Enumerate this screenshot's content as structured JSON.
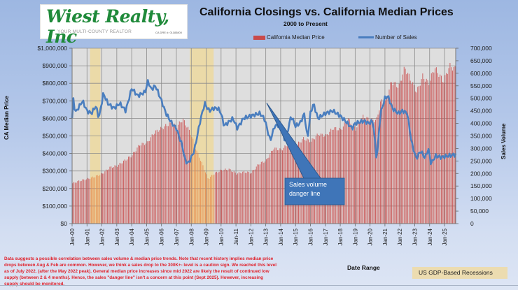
{
  "logo": {
    "name": "Wiest Realty, Inc",
    "tagline": "YOUR MULTI-COUNTY REALTOR",
    "license": "CA DRE #: 01183800"
  },
  "chart_data": {
    "type": "bar+line",
    "title": "California Closings vs. California Median Prices",
    "subtitle": "2000 to Present",
    "xlabel": "Date Range",
    "ylabel_left": "CA Median Price",
    "ylabel_right": "Sales Volume",
    "ylim_left": [
      0,
      1000000
    ],
    "ylim_right": [
      0,
      700000
    ],
    "yticks_left": [
      "$0",
      "$100,000",
      "$200,000",
      "$300,000",
      "$400,000",
      "$500,000",
      "$600,000",
      "$700,000",
      "$800,000",
      "$900,000",
      "$1,000,000"
    ],
    "yticks_right": [
      "0",
      "50,000",
      "100,000",
      "150,000",
      "200,000",
      "250,000",
      "300,000",
      "350,000",
      "400,000",
      "450,000",
      "500,000",
      "550,000",
      "600,000",
      "650,000",
      "700,000"
    ],
    "x_ticks": [
      "Jan-00",
      "Jan-01",
      "Jan-02",
      "Jan-03",
      "Jan-04",
      "Jan-05",
      "Jan-06",
      "Jan-07",
      "Jan-08",
      "Jan-09",
      "Jan-10",
      "Jan-11",
      "Jan-12",
      "Jan-13",
      "Jan-14",
      "Jan-15",
      "Jan-16",
      "Jan-17",
      "Jan-18",
      "Jan-19",
      "Jan-20",
      "Jan-21",
      "Jan-22",
      "Jan-23",
      "Jan-24",
      "Jan-25"
    ],
    "x_range_years": [
      2000,
      2025.75
    ],
    "grid": true,
    "legend_position": "top",
    "series": [
      {
        "name": "California Median Price",
        "kind": "bar",
        "color": "#c94a4a",
        "sampling": "quarterly keypoints (year, value) interpolated monthly",
        "points": [
          [
            2000.0,
            230000
          ],
          [
            2000.5,
            245000
          ],
          [
            2001.0,
            255000
          ],
          [
            2001.5,
            268000
          ],
          [
            2002.0,
            285000
          ],
          [
            2002.5,
            320000
          ],
          [
            2003.0,
            330000
          ],
          [
            2003.5,
            360000
          ],
          [
            2004.0,
            390000
          ],
          [
            2004.5,
            450000
          ],
          [
            2005.0,
            460000
          ],
          [
            2005.5,
            520000
          ],
          [
            2006.0,
            545000
          ],
          [
            2006.5,
            570000
          ],
          [
            2007.0,
            555000
          ],
          [
            2007.4,
            595000
          ],
          [
            2007.9,
            520000
          ],
          [
            2008.3,
            420000
          ],
          [
            2008.7,
            340000
          ],
          [
            2009.1,
            255000
          ],
          [
            2009.5,
            285000
          ],
          [
            2010.0,
            305000
          ],
          [
            2010.5,
            310000
          ],
          [
            2011.0,
            285000
          ],
          [
            2011.5,
            295000
          ],
          [
            2012.0,
            290000
          ],
          [
            2012.5,
            340000
          ],
          [
            2013.0,
            360000
          ],
          [
            2013.5,
            430000
          ],
          [
            2014.0,
            420000
          ],
          [
            2014.5,
            455000
          ],
          [
            2015.0,
            445000
          ],
          [
            2015.5,
            485000
          ],
          [
            2016.0,
            470000
          ],
          [
            2016.5,
            510000
          ],
          [
            2017.0,
            500000
          ],
          [
            2017.5,
            545000
          ],
          [
            2018.0,
            535000
          ],
          [
            2018.5,
            595000
          ],
          [
            2019.0,
            540000
          ],
          [
            2019.5,
            610000
          ],
          [
            2020.0,
            590000
          ],
          [
            2020.4,
            590000
          ],
          [
            2020.7,
            700000
          ],
          [
            2021.0,
            690000
          ],
          [
            2021.4,
            810000
          ],
          [
            2021.9,
            780000
          ],
          [
            2022.3,
            890000
          ],
          [
            2022.8,
            800000
          ],
          [
            2023.1,
            750000
          ],
          [
            2023.5,
            840000
          ],
          [
            2023.9,
            800000
          ],
          [
            2024.3,
            890000
          ],
          [
            2024.9,
            810000
          ],
          [
            2025.3,
            900000
          ],
          [
            2025.7,
            880000
          ]
        ]
      },
      {
        "name": "Number of Sales",
        "kind": "line",
        "color": "#4a7ebf",
        "sampling": "keypoints (year, value) interpolated monthly",
        "points": [
          [
            2000.0,
            420000
          ],
          [
            2000.1,
            510000
          ],
          [
            2000.2,
            440000
          ],
          [
            2000.4,
            460000
          ],
          [
            2000.7,
            490000
          ],
          [
            2001.0,
            450000
          ],
          [
            2001.3,
            440000
          ],
          [
            2001.6,
            470000
          ],
          [
            2001.8,
            420000
          ],
          [
            2002.1,
            520000
          ],
          [
            2002.4,
            480000
          ],
          [
            2002.8,
            460000
          ],
          [
            2003.2,
            480000
          ],
          [
            2003.6,
            450000
          ],
          [
            2004.0,
            540000
          ],
          [
            2004.4,
            510000
          ],
          [
            2004.9,
            525000
          ],
          [
            2005.1,
            570000
          ],
          [
            2005.3,
            535000
          ],
          [
            2005.6,
            550000
          ],
          [
            2006.0,
            490000
          ],
          [
            2006.3,
            440000
          ],
          [
            2006.7,
            400000
          ],
          [
            2007.0,
            380000
          ],
          [
            2007.4,
            310000
          ],
          [
            2007.6,
            250000
          ],
          [
            2007.8,
            240000
          ],
          [
            2008.2,
            290000
          ],
          [
            2008.6,
            410000
          ],
          [
            2008.9,
            480000
          ],
          [
            2009.2,
            450000
          ],
          [
            2009.5,
            460000
          ],
          [
            2009.8,
            460000
          ],
          [
            2010.0,
            440000
          ],
          [
            2010.2,
            390000
          ],
          [
            2010.6,
            410000
          ],
          [
            2010.8,
            420000
          ],
          [
            2011.1,
            380000
          ],
          [
            2011.5,
            420000
          ],
          [
            2012.0,
            430000
          ],
          [
            2012.6,
            440000
          ],
          [
            2012.9,
            420000
          ],
          [
            2013.0,
            400000
          ],
          [
            2013.3,
            330000
          ],
          [
            2013.6,
            390000
          ],
          [
            2014.0,
            395000
          ],
          [
            2014.3,
            325000
          ],
          [
            2014.7,
            430000
          ],
          [
            2015.0,
            390000
          ],
          [
            2015.3,
            400000
          ],
          [
            2015.6,
            440000
          ],
          [
            2015.8,
            335000
          ],
          [
            2016.0,
            440000
          ],
          [
            2016.2,
            480000
          ],
          [
            2016.5,
            420000
          ],
          [
            2017.0,
            440000
          ],
          [
            2017.5,
            450000
          ],
          [
            2018.0,
            430000
          ],
          [
            2018.5,
            400000
          ],
          [
            2018.8,
            380000
          ],
          [
            2019.0,
            400000
          ],
          [
            2019.6,
            410000
          ],
          [
            2019.9,
            400000
          ],
          [
            2020.2,
            410000
          ],
          [
            2020.45,
            250000
          ],
          [
            2020.7,
            440000
          ],
          [
            2021.0,
            500000
          ],
          [
            2021.2,
            510000
          ],
          [
            2021.5,
            460000
          ],
          [
            2021.9,
            440000
          ],
          [
            2022.2,
            450000
          ],
          [
            2022.5,
            440000
          ],
          [
            2022.8,
            320000
          ],
          [
            2023.1,
            260000
          ],
          [
            2023.4,
            290000
          ],
          [
            2023.7,
            260000
          ],
          [
            2023.9,
            300000
          ],
          [
            2024.1,
            240000
          ],
          [
            2024.4,
            270000
          ],
          [
            2024.8,
            265000
          ],
          [
            2025.2,
            270000
          ],
          [
            2025.7,
            275000
          ]
        ]
      }
    ],
    "shaded_regions": [
      {
        "label": "US GDP-Based Recessions",
        "from": 2001.2,
        "to": 2001.9,
        "color": "#ecd9a2"
      },
      {
        "label": "US GDP-Based Recessions",
        "from": 2007.9,
        "to": 2009.5,
        "color": "#ecd9a2"
      }
    ],
    "annotations": [
      {
        "text": "Sales volume danger line",
        "type": "callout",
        "points_to": [
          2013.2,
          320000
        ]
      }
    ]
  },
  "legend": {
    "bar_label": "California Median Price",
    "line_label": "Number of Sales",
    "recession_label": "US GDP-Based Recessions"
  },
  "callout": {
    "line1": "Sales volume",
    "line2": "danger line"
  },
  "note": "Data suggests  a possible correlation between sales volume & median price trends. Note that recent history implies median price drops between Aug & Feb are  common. However, we think a sales  drop to the  300K+-  level is a caution sign. We  reached this level as of July 2022. (after the May 2022 peak).  General median price increases since mid 2022 are likely the result of continued low supply (between 2 & 4 months). Hence, the sales \"danger line\" isn't a concern at this point (Sept 2025). However, increasing supply should be monitored."
}
